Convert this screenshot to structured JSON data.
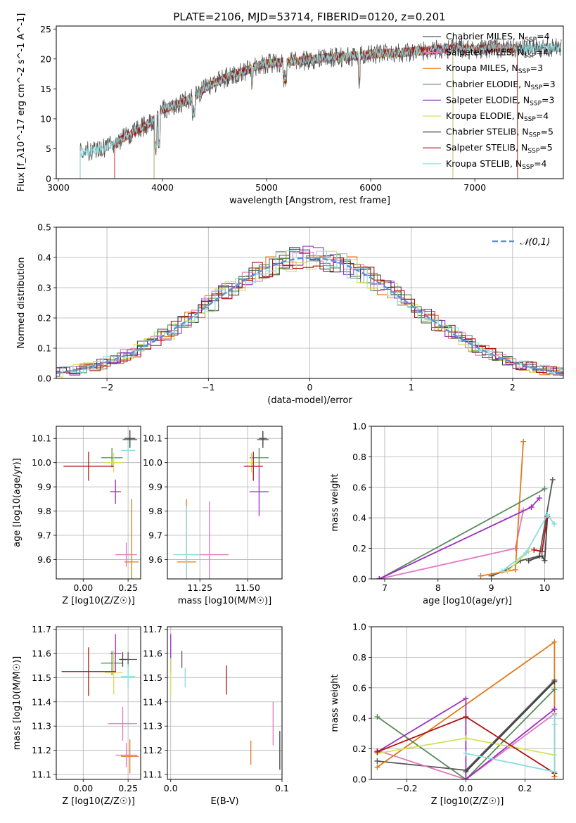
{
  "title": "PLATE=2106, MJD=53714, FIBERID=0120, z=0.201",
  "palette": {
    "Chabrier MILES": "#555555",
    "Salpeter MILES": "#e377c2",
    "Kroupa MILES": "#e07b1a",
    "Chabrier ELODIE": "#5a8a5a",
    "Salpeter ELODIE": "#9b30c0",
    "Kroupa ELODIE": "#d4e05a",
    "Chabrier STELIB": "#444444",
    "Salpeter STELIB": "#b01010",
    "Kroupa STELIB": "#8adbe0"
  },
  "chart_data": [
    {
      "id": "spectrum",
      "type": "line",
      "xlabel": "wavelength [Angstrom, rest frame]",
      "ylabel": "Flux [f_λ10^-17 erg cm^-2 s^-1 A^-1]",
      "xlim": [
        2980,
        7850
      ],
      "ylim": [
        0,
        25.5
      ],
      "xticks": [
        3000,
        4000,
        5000,
        6000,
        7000
      ],
      "yticks": [
        0,
        5,
        10,
        15,
        20,
        25
      ],
      "continuum": [
        [
          3210,
          4.3
        ],
        [
          3350,
          4.8
        ],
        [
          3500,
          5.5
        ],
        [
          3600,
          6.5
        ],
        [
          3700,
          7.5
        ],
        [
          3800,
          8.5
        ],
        [
          3900,
          9.6
        ],
        [
          3950,
          10.2
        ],
        [
          4000,
          11.5
        ],
        [
          4100,
          12.2
        ],
        [
          4200,
          12.8
        ],
        [
          4300,
          13.6
        ],
        [
          4400,
          15.0
        ],
        [
          4500,
          16.0
        ],
        [
          4600,
          16.8
        ],
        [
          4700,
          17.5
        ],
        [
          4800,
          18.0
        ],
        [
          4900,
          18.8
        ],
        [
          5000,
          19.2
        ],
        [
          5100,
          19.4
        ],
        [
          5200,
          19.5
        ],
        [
          5400,
          19.8
        ],
        [
          5600,
          20.3
        ],
        [
          5800,
          20.4
        ],
        [
          6000,
          20.8
        ],
        [
          6200,
          21.0
        ],
        [
          6400,
          21.2
        ],
        [
          6600,
          21.5
        ],
        [
          6800,
          21.8
        ],
        [
          7000,
          21.6
        ],
        [
          7200,
          21.8
        ],
        [
          7400,
          21.7
        ],
        [
          7600,
          21.8
        ],
        [
          7830,
          21.9
        ]
      ],
      "series": [
        {
          "name": "Chabrier MILES",
          "nssp": "4",
          "xstart": 3540,
          "xend": 7830
        },
        {
          "name": "Salpeter MILES",
          "nssp": "4",
          "xstart": 3540,
          "xend": 7410
        },
        {
          "name": "Kroupa MILES",
          "nssp": "3",
          "xstart": 3540,
          "xend": 7410
        },
        {
          "name": "Chabrier ELODIE",
          "nssp": "3",
          "xstart": 3920,
          "xend": 6790
        },
        {
          "name": "Salpeter ELODIE",
          "nssp": "3",
          "xstart": 3920,
          "xend": 6790
        },
        {
          "name": "Kroupa ELODIE",
          "nssp": "4",
          "xstart": 3920,
          "xend": 6790
        },
        {
          "name": "Chabrier STELIB",
          "nssp": "5",
          "xstart": 3210,
          "xend": 7830
        },
        {
          "name": "Salpeter STELIB",
          "nssp": "5",
          "xstart": 3540,
          "xend": 7410
        },
        {
          "name": "Kroupa STELIB",
          "nssp": "4",
          "xstart": 3210,
          "xend": 7830
        }
      ]
    },
    {
      "id": "residual-hist",
      "type": "line",
      "xlabel": "(data-model)/error",
      "ylabel": "Normed distribution",
      "xlim": [
        -2.5,
        2.5
      ],
      "ylim": [
        0,
        0.5
      ],
      "xticks": [
        -2,
        -1,
        0,
        1,
        2
      ],
      "yticks": [
        0.0,
        0.1,
        0.2,
        0.3,
        0.4,
        0.5
      ],
      "legend": "top-right",
      "gaussian_label": "𝒩(0,1)",
      "bin_width": 0.1,
      "note_series": "each colour draws a step histogram close to the normal curve"
    },
    {
      "id": "age-vs-Z",
      "type": "scatter",
      "xlabel": "Z [log10(Z/Z☉)]",
      "ylabel": "age  [log10(age/yr)]",
      "xlim": [
        -0.15,
        0.32
      ],
      "ylim": [
        9.52,
        10.15
      ],
      "xticks": [
        0.0,
        0.25
      ],
      "yticks": [
        9.6,
        9.7,
        9.8,
        9.9,
        10.0,
        10.1
      ],
      "points": [
        {
          "series": "Chabrier MILES",
          "x": 0.26,
          "y": 10.095,
          "xerr": 0.04,
          "yerr": 0.035
        },
        {
          "series": "Salpeter MILES",
          "x": 0.24,
          "y": 9.62,
          "xerr": 0.06,
          "yerr": 0.05
        },
        {
          "series": "Kroupa MILES",
          "x": 0.27,
          "y": 9.59,
          "xerr": 0.04,
          "yerr": 0.26
        },
        {
          "series": "Chabrier ELODIE",
          "x": 0.16,
          "y": 10.02,
          "xerr": 0.06,
          "yerr": 0.04
        },
        {
          "series": "Salpeter ELODIE",
          "x": 0.18,
          "y": 9.88,
          "xerr": 0.03,
          "yerr": 0.05
        },
        {
          "series": "Kroupa ELODIE",
          "x": 0.17,
          "y": 10.0,
          "xerr": 0.05,
          "yerr": 0.04
        },
        {
          "series": "Chabrier STELIB",
          "x": 0.26,
          "y": 10.1,
          "xerr": 0.03,
          "yerr": 0.035
        },
        {
          "series": "Salpeter STELIB",
          "x": 0.03,
          "y": 9.985,
          "xerr": 0.14,
          "yerr": 0.06
        },
        {
          "series": "Kroupa STELIB",
          "x": 0.25,
          "y": 10.05,
          "xerr": 0.04,
          "yerr": 0.04
        }
      ]
    },
    {
      "id": "age-vs-mass",
      "type": "scatter",
      "xlabel": "mass [log10(M/M☉)]",
      "ylabel": "",
      "xlim": [
        11.08,
        11.68
      ],
      "ylim": [
        9.52,
        10.15
      ],
      "xticks": [
        11.25,
        11.5
      ],
      "yticks": [
        9.6,
        9.7,
        9.8,
        9.9,
        10.0,
        10.1
      ],
      "points": [
        {
          "series": "Chabrier MILES",
          "x": 11.58,
          "y": 10.095,
          "xerr": 0.03,
          "yerr": 0.035
        },
        {
          "series": "Salpeter MILES",
          "x": 11.3,
          "y": 9.62,
          "xerr": 0.1,
          "yerr": 0.22
        },
        {
          "series": "Kroupa MILES",
          "x": 11.18,
          "y": 9.59,
          "xerr": 0.05,
          "yerr": 0.26
        },
        {
          "series": "Chabrier ELODIE",
          "x": 11.56,
          "y": 10.02,
          "xerr": 0.05,
          "yerr": 0.04
        },
        {
          "series": "Salpeter ELODIE",
          "x": 11.56,
          "y": 9.88,
          "xerr": 0.05,
          "yerr": 0.1
        },
        {
          "series": "Kroupa ELODIE",
          "x": 11.52,
          "y": 10.0,
          "xerr": 0.02,
          "yerr": 0.04
        },
        {
          "series": "Chabrier STELIB",
          "x": 11.58,
          "y": 10.1,
          "xerr": 0.02,
          "yerr": 0.03
        },
        {
          "series": "Salpeter STELIB",
          "x": 11.53,
          "y": 9.985,
          "xerr": 0.05,
          "yerr": 0.06
        },
        {
          "series": "Kroupa STELIB",
          "x": 11.18,
          "y": 9.62,
          "xerr": 0.07,
          "yerr": 0.2
        }
      ]
    },
    {
      "id": "mass-weight-vs-age",
      "type": "line",
      "xlabel": "age  [log10(age/yr)]",
      "ylabel": "mass weight",
      "xlim": [
        6.75,
        10.35
      ],
      "ylim": [
        0,
        1
      ],
      "xticks": [
        7,
        8,
        9,
        10
      ],
      "yticks": [
        0.0,
        0.2,
        0.4,
        0.6,
        0.8,
        1.0
      ],
      "series": [
        {
          "name": "Chabrier MILES",
          "points": [
            [
              9.0,
              0.02
            ],
            [
              9.3,
              0.06
            ],
            [
              9.55,
              0.12
            ],
            [
              9.9,
              0.15
            ],
            [
              10.15,
              0.65
            ]
          ]
        },
        {
          "name": "Salpeter MILES",
          "points": [
            [
              6.9,
              0.0
            ],
            [
              9.45,
              0.2
            ],
            [
              9.6,
              0.45
            ]
          ]
        },
        {
          "name": "Kroupa MILES",
          "points": [
            [
              8.8,
              0.02
            ],
            [
              9.45,
              0.06
            ],
            [
              9.6,
              0.9
            ]
          ]
        },
        {
          "name": "Chabrier ELODIE",
          "points": [
            [
              6.9,
              0.0
            ],
            [
              10.0,
              0.59
            ]
          ]
        },
        {
          "name": "Salpeter ELODIE",
          "points": [
            [
              6.9,
              0.0
            ],
            [
              9.75,
              0.47
            ],
            [
              9.9,
              0.53
            ]
          ]
        },
        {
          "name": "Kroupa ELODIE",
          "points": [
            [
              9.3,
              0.05
            ],
            [
              9.7,
              0.18
            ]
          ]
        },
        {
          "name": "Chabrier STELIB",
          "points": [
            [
              9.7,
              0.12
            ],
            [
              9.95,
              0.15
            ],
            [
              10.0,
              0.12
            ],
            [
              10.05,
              0.4
            ]
          ]
        },
        {
          "name": "Salpeter STELIB",
          "points": [
            [
              9.8,
              0.19
            ],
            [
              9.95,
              0.18
            ],
            [
              10.05,
              0.41
            ]
          ]
        },
        {
          "name": "Kroupa STELIB",
          "points": [
            [
              9.2,
              0.05
            ],
            [
              9.65,
              0.17
            ],
            [
              10.05,
              0.42
            ],
            [
              10.18,
              0.36
            ]
          ]
        }
      ]
    },
    {
      "id": "mass-vs-Z",
      "type": "scatter",
      "xlabel": "Z [log10(Z/Z☉)]",
      "ylabel": "mass [log10(M/M☉)]",
      "xlim": [
        -0.15,
        0.32
      ],
      "ylim": [
        11.08,
        11.71
      ],
      "xticks": [
        0.0,
        0.25
      ],
      "yticks": [
        11.1,
        11.2,
        11.3,
        11.4,
        11.5,
        11.6,
        11.7
      ],
      "points": [
        {
          "series": "Chabrier MILES",
          "x": 0.25,
          "y": 11.575,
          "xerr": 0.05,
          "yerr": 0.03
        },
        {
          "series": "Salpeter MILES",
          "x": 0.22,
          "y": 11.31,
          "xerr": 0.08,
          "yerr": 0.07
        },
        {
          "series": "Kroupa MILES",
          "x": 0.26,
          "y": 11.175,
          "xerr": 0.05,
          "yerr": 0.07
        },
        {
          "series": "Chabrier ELODIE",
          "x": 0.16,
          "y": 11.56,
          "xerr": 0.06,
          "yerr": 0.05
        },
        {
          "series": "Salpeter ELODIE",
          "x": 0.18,
          "y": 11.6,
          "xerr": 0.03,
          "yerr": 0.08
        },
        {
          "series": "Kroupa ELODIE",
          "x": 0.17,
          "y": 11.52,
          "xerr": 0.05,
          "yerr": 0.09
        },
        {
          "series": "Chabrier STELIB",
          "x": 0.22,
          "y": 11.575,
          "xerr": 0.02,
          "yerr": 0.03
        },
        {
          "series": "Salpeter STELIB",
          "x": 0.03,
          "y": 11.525,
          "xerr": 0.15,
          "yerr": 0.1
        },
        {
          "series": "Kroupa STELIB",
          "x": 0.25,
          "y": 11.505,
          "xerr": 0.04,
          "yerr": 0.05
        },
        {
          "series": "Salpeter MILES",
          "x": 0.24,
          "y": 11.18,
          "xerr": 0.06,
          "yerr": 0.05
        }
      ]
    },
    {
      "id": "mass-vs-ebv",
      "type": "scatter",
      "xlabel": "E(B-V)",
      "ylabel": "",
      "xlim": [
        -0.003,
        0.1
      ],
      "ylim": [
        11.08,
        11.71
      ],
      "xticks": [
        0.0,
        0.1
      ],
      "yticks": [
        11.1,
        11.2,
        11.3,
        11.4,
        11.5,
        11.6,
        11.7
      ],
      "points": [
        {
          "series": "Chabrier MILES",
          "x": 0.01,
          "y": 11.575,
          "yerr": 0.035
        },
        {
          "series": "Salpeter MILES",
          "x": 0.092,
          "y": 11.31,
          "yerr": 0.09
        },
        {
          "series": "Kroupa MILES",
          "x": 0.072,
          "y": 11.19,
          "yerr": 0.05
        },
        {
          "series": "Salpeter ELODIE",
          "x": 0.0,
          "y": 11.6,
          "yerr": 0.08
        },
        {
          "series": "Kroupa ELODIE",
          "x": 0.0,
          "y": 11.5,
          "yerr": 0.08
        },
        {
          "series": "Salpeter STELIB",
          "x": 0.05,
          "y": 11.49,
          "yerr": 0.06
        },
        {
          "series": "Kroupa STELIB",
          "x": 0.013,
          "y": 11.5,
          "yerr": 0.04
        },
        {
          "series": "Chabrier STELIB",
          "x": 0.098,
          "y": 11.2,
          "yerr": 0.08
        }
      ]
    },
    {
      "id": "mass-weight-vs-Z",
      "type": "line",
      "xlabel": "Z [log10(Z/Z☉)]",
      "ylabel": "mass weight",
      "xlim": [
        -0.32,
        0.33
      ],
      "ylim": [
        0,
        1
      ],
      "xticks": [
        -0.2,
        0.0,
        0.2
      ],
      "yticks": [
        0.0,
        0.2,
        0.4,
        0.6,
        0.8,
        1.0
      ],
      "series": [
        {
          "name": "Chabrier MILES",
          "points": [
            [
              -0.3,
              0.12
            ],
            [
              0.0,
              0.06
            ],
            [
              0.3,
              0.65
            ],
            [
              0.3,
              0.02
            ]
          ]
        },
        {
          "name": "Salpeter MILES",
          "points": [
            [
              -0.3,
              0.19
            ],
            [
              0.0,
              0.0
            ],
            [
              0.3,
              0.43
            ]
          ]
        },
        {
          "name": "Kroupa MILES",
          "points": [
            [
              -0.3,
              0.08
            ],
            [
              0.3,
              0.9
            ],
            [
              0.3,
              0.02
            ]
          ]
        },
        {
          "name": "Chabrier ELODIE",
          "points": [
            [
              -0.3,
              0.41
            ],
            [
              0.0,
              0.0
            ],
            [
              0.3,
              0.59
            ]
          ]
        },
        {
          "name": "Salpeter ELODIE",
          "points": [
            [
              -0.3,
              0.18
            ],
            [
              0.0,
              0.53
            ],
            [
              0.0,
              0.0
            ],
            [
              0.3,
              0.46
            ]
          ]
        },
        {
          "name": "Kroupa ELODIE",
          "points": [
            [
              -0.3,
              0.17
            ],
            [
              0.0,
              0.27
            ],
            [
              0.3,
              0.16
            ]
          ]
        },
        {
          "name": "Chabrier STELIB",
          "points": [
            [
              0.0,
              0.05
            ],
            [
              0.3,
              0.64
            ]
          ]
        },
        {
          "name": "Salpeter STELIB",
          "points": [
            [
              -0.3,
              0.18
            ],
            [
              0.0,
              0.41
            ],
            [
              0.3,
              0.04
            ]
          ]
        },
        {
          "name": "Kroupa STELIB",
          "points": [
            [
              0.0,
              0.17
            ],
            [
              0.3,
              0.05
            ],
            [
              0.3,
              0.42
            ],
            [
              0.3,
              0.36
            ]
          ]
        }
      ]
    }
  ]
}
